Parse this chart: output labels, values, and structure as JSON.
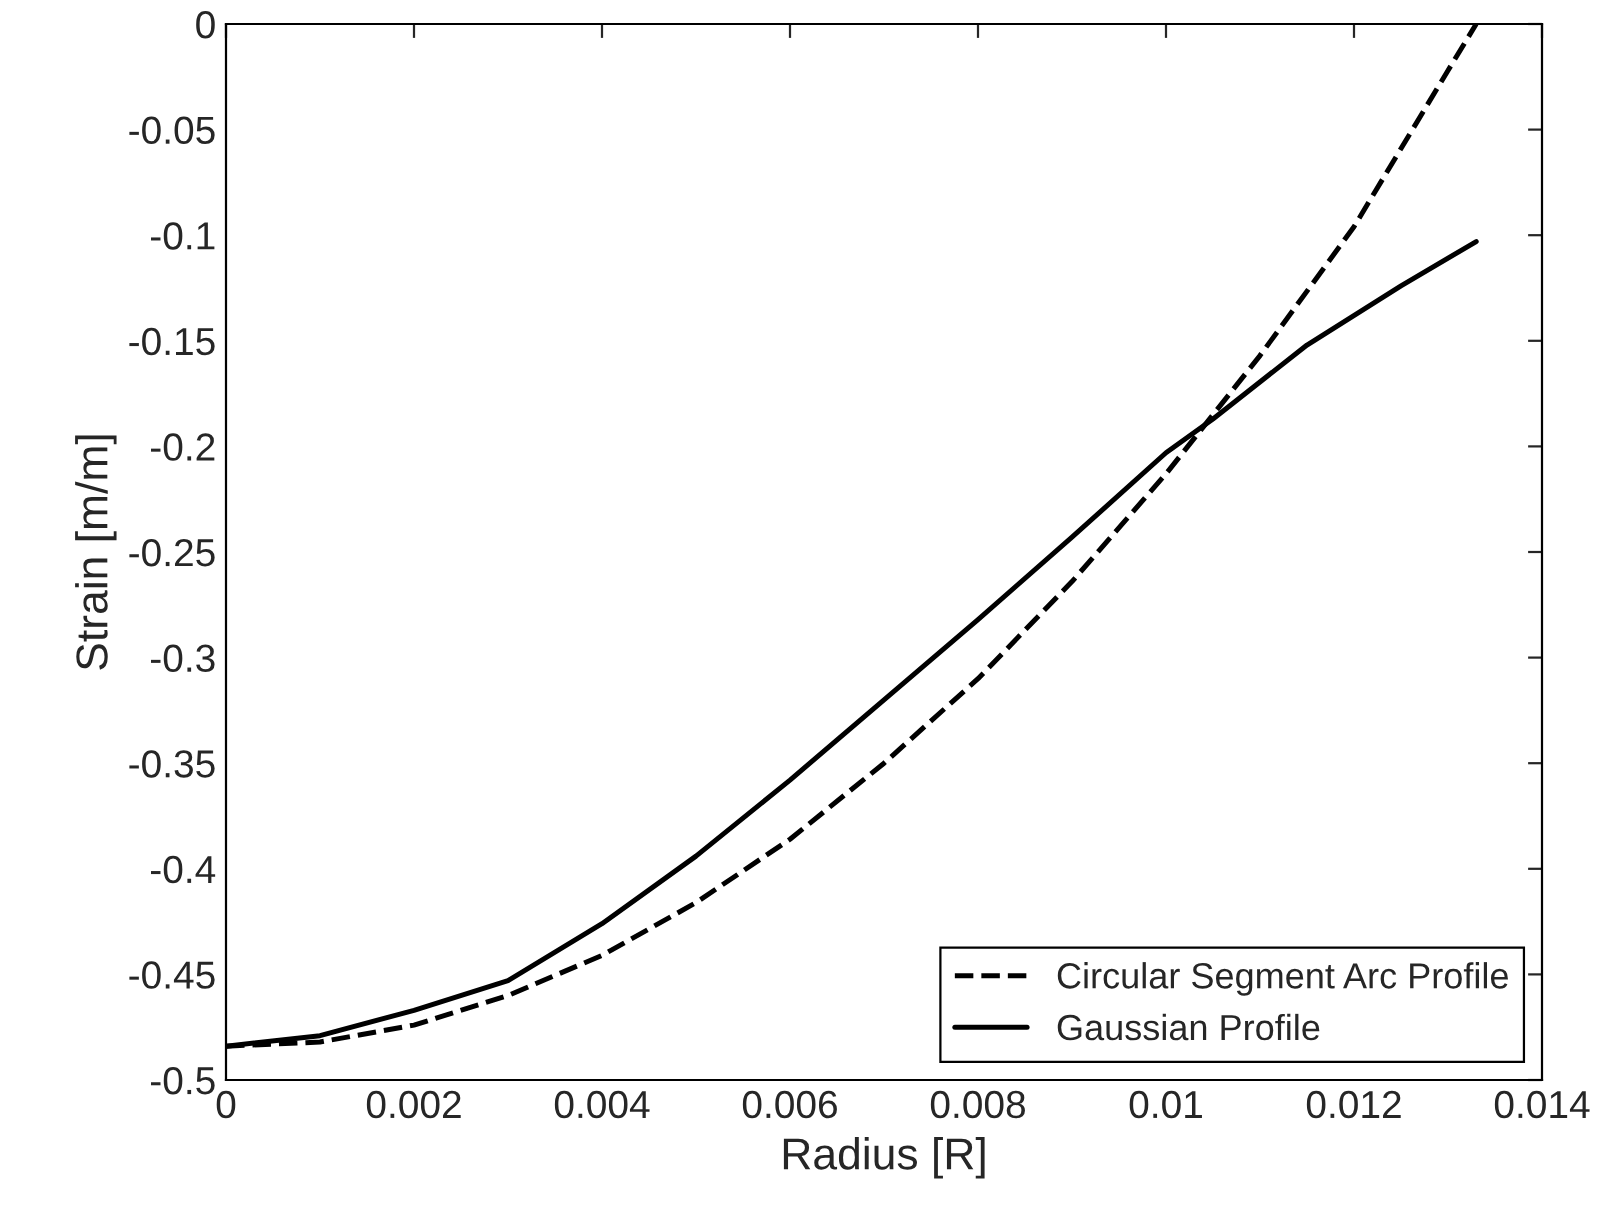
{
  "chart_data": {
    "type": "line",
    "xlabel": "Radius [R]",
    "ylabel": "Strain [m/m]",
    "series": [
      {
        "name": "Circular Segment Arc Profile",
        "color": "#000000",
        "line_style": "dashed",
        "x": [
          0,
          0.001,
          0.002,
          0.003,
          0.004,
          0.005,
          0.006,
          0.007,
          0.008,
          0.009,
          0.01,
          0.011,
          0.012,
          0.013,
          0.0133
        ],
        "values": [
          -0.484,
          -0.482,
          -0.474,
          -0.46,
          -0.441,
          -0.416,
          -0.386,
          -0.35,
          -0.31,
          -0.264,
          -0.213,
          -0.157,
          -0.096,
          -0.022,
          0
        ]
      },
      {
        "name": "Gaussian Profile",
        "color": "#000000",
        "line_style": "solid",
        "x": [
          0,
          0.001,
          0.002,
          0.003,
          0.004,
          0.005,
          0.006,
          0.007,
          0.008,
          0.009,
          0.01,
          0.0105,
          0.0115,
          0.0125,
          0.0133
        ],
        "values": [
          -0.484,
          -0.479,
          -0.467,
          -0.453,
          -0.426,
          -0.394,
          -0.358,
          -0.32,
          -0.282,
          -0.243,
          -0.203,
          -0.187,
          -0.152,
          -0.124,
          -0.103
        ]
      }
    ],
    "xlim": [
      0,
      0.014
    ],
    "xticks": [
      0,
      0.002,
      0.004,
      0.006,
      0.008,
      0.01,
      0.012,
      0.014
    ],
    "ylim": [
      -0.5,
      0
    ],
    "yticks": [
      -0.5,
      -0.45,
      -0.4,
      -0.35,
      -0.3,
      -0.25,
      -0.2,
      -0.15,
      -0.1,
      -0.05,
      0
    ],
    "legend": "bottom right",
    "grid": false
  }
}
